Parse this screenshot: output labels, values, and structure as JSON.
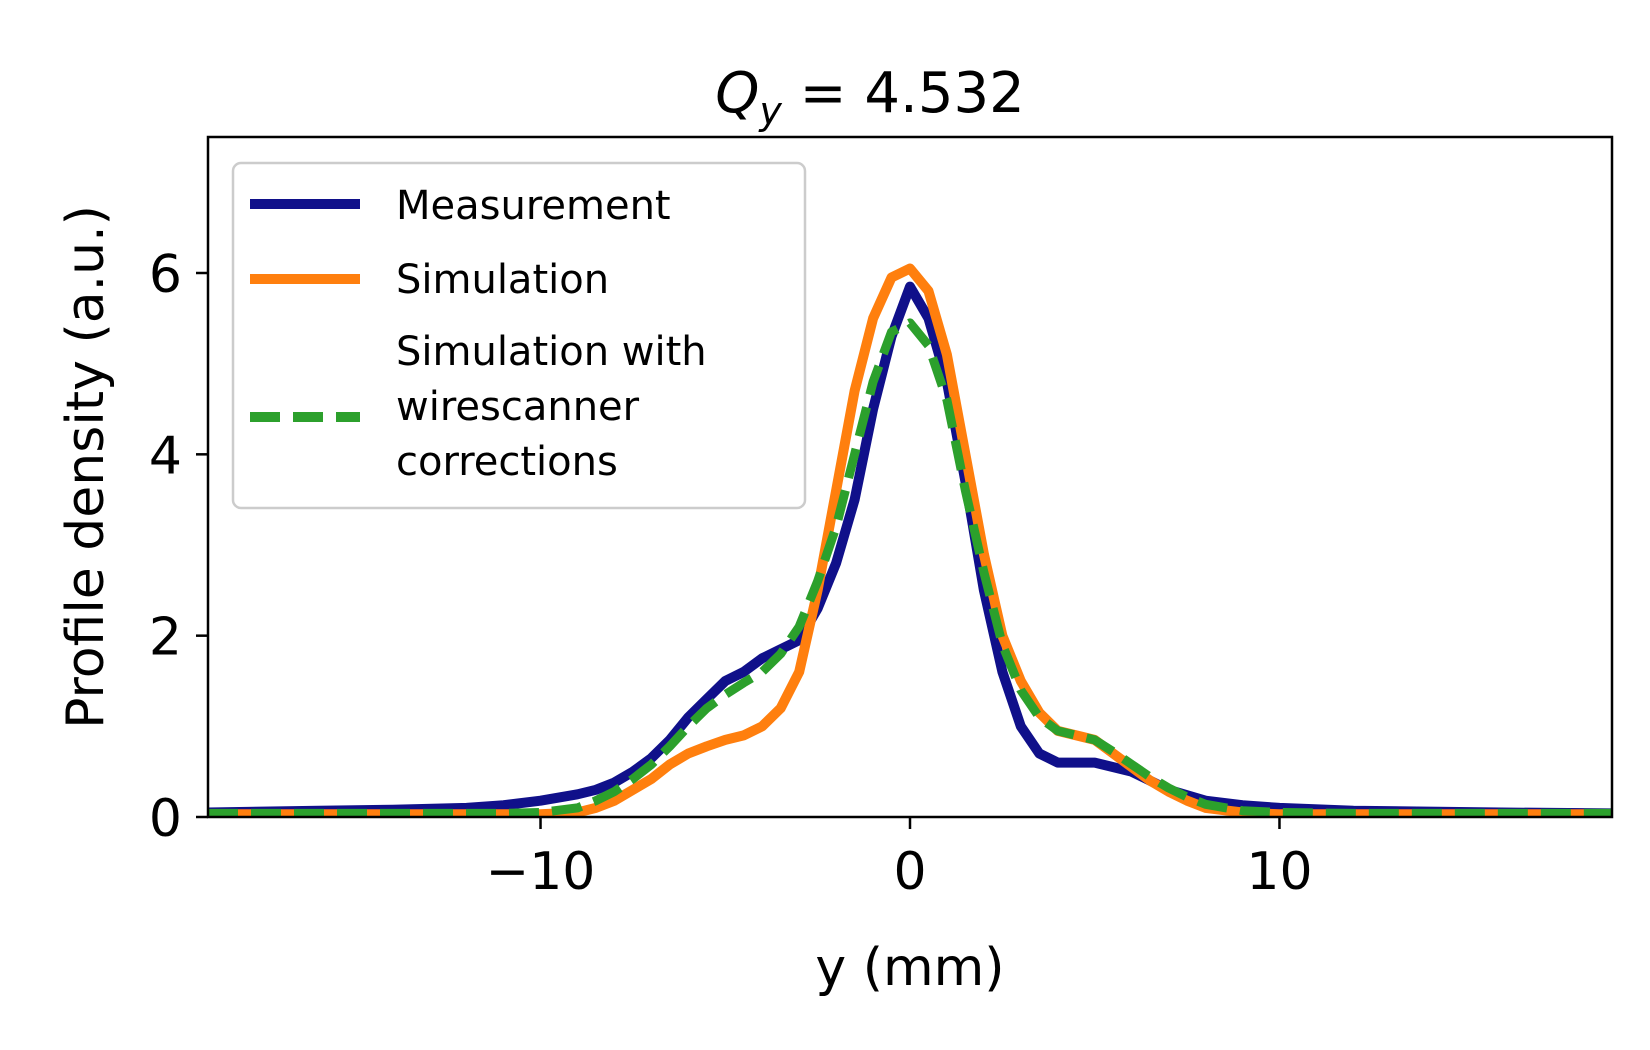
{
  "chart_data": {
    "type": "line",
    "title": "Q_y = 4.532",
    "title_parts": {
      "symbol": "Q",
      "subscript": "y",
      "rest": " = 4.532"
    },
    "xlabel": "y (mm)",
    "ylabel": "Profile density (a.u.)",
    "xlim": [
      -19,
      19
    ],
    "ylim": [
      0,
      7.5
    ],
    "xticks": [
      -10,
      0,
      10
    ],
    "xtick_labels": [
      "−10",
      "0",
      "10"
    ],
    "yticks": [
      0,
      2,
      4,
      6
    ],
    "ytick_labels": [
      "0",
      "2",
      "4",
      "6"
    ],
    "grid": false,
    "legend_position": "top-left",
    "series": [
      {
        "name": "Measurement",
        "color": "#10108a",
        "style": "solid",
        "x": [
          -19,
          -16,
          -14,
          -12,
          -11,
          -10,
          -9,
          -8.5,
          -8,
          -7.5,
          -7,
          -6.5,
          -6,
          -5.5,
          -5,
          -4.5,
          -4,
          -3.5,
          -3,
          -2.5,
          -2,
          -1.5,
          -1,
          -0.5,
          0,
          0.5,
          1,
          1.5,
          2,
          2.5,
          3,
          3.5,
          4,
          4.5,
          5,
          5.5,
          6,
          6.5,
          7,
          8,
          9,
          10,
          12,
          14,
          16,
          19
        ],
        "y": [
          0.05,
          0.07,
          0.08,
          0.1,
          0.13,
          0.18,
          0.25,
          0.3,
          0.38,
          0.5,
          0.65,
          0.85,
          1.1,
          1.3,
          1.5,
          1.6,
          1.75,
          1.85,
          1.95,
          2.3,
          2.8,
          3.5,
          4.5,
          5.3,
          5.85,
          5.5,
          4.8,
          3.7,
          2.5,
          1.6,
          1.0,
          0.7,
          0.6,
          0.6,
          0.6,
          0.55,
          0.5,
          0.4,
          0.3,
          0.18,
          0.13,
          0.1,
          0.07,
          0.06,
          0.05,
          0.04
        ]
      },
      {
        "name": "Simulation",
        "color": "#ff7f0e",
        "style": "solid",
        "x": [
          -19,
          -14,
          -11,
          -10,
          -9,
          -8.5,
          -8,
          -7.5,
          -7,
          -6.5,
          -6,
          -5.5,
          -5,
          -4.5,
          -4,
          -3.5,
          -3,
          -2.5,
          -2,
          -1.5,
          -1,
          -0.5,
          0,
          0.5,
          1,
          1.5,
          2,
          2.5,
          3,
          3.5,
          4,
          4.5,
          5,
          5.5,
          6,
          6.5,
          7,
          7.5,
          8,
          9,
          10,
          12,
          19
        ],
        "y": [
          0.03,
          0.03,
          0.03,
          0.03,
          0.05,
          0.1,
          0.18,
          0.3,
          0.42,
          0.58,
          0.7,
          0.78,
          0.85,
          0.9,
          1.0,
          1.2,
          1.6,
          2.5,
          3.6,
          4.7,
          5.5,
          5.95,
          6.05,
          5.8,
          5.1,
          4.0,
          2.9,
          2.0,
          1.5,
          1.15,
          0.95,
          0.9,
          0.85,
          0.7,
          0.55,
          0.4,
          0.28,
          0.18,
          0.1,
          0.05,
          0.03,
          0.03,
          0.03
        ]
      },
      {
        "name": "Simulation with wirescanner corrections",
        "color": "#2ca02c",
        "style": "dashed",
        "x": [
          -19,
          -14,
          -11,
          -10,
          -9,
          -8.5,
          -8,
          -7.5,
          -7,
          -6.5,
          -6,
          -5.5,
          -5,
          -4.5,
          -4,
          -3.5,
          -3,
          -2.5,
          -2,
          -1.5,
          -1,
          -0.5,
          0,
          0.5,
          1,
          1.5,
          2,
          2.5,
          3,
          3.5,
          4,
          4.5,
          5,
          5.5,
          6,
          6.5,
          7,
          7.5,
          8,
          9,
          10,
          12,
          19
        ],
        "y": [
          0.04,
          0.04,
          0.04,
          0.05,
          0.1,
          0.18,
          0.28,
          0.42,
          0.58,
          0.78,
          1.0,
          1.2,
          1.35,
          1.48,
          1.6,
          1.8,
          2.1,
          2.6,
          3.2,
          4.0,
          4.8,
          5.35,
          5.45,
          5.2,
          4.6,
          3.6,
          2.7,
          1.9,
          1.4,
          1.1,
          0.95,
          0.9,
          0.85,
          0.72,
          0.58,
          0.44,
          0.32,
          0.22,
          0.14,
          0.07,
          0.05,
          0.04,
          0.04
        ]
      }
    ]
  },
  "legend": {
    "items": [
      {
        "lines": [
          "Measurement"
        ]
      },
      {
        "lines": [
          "Simulation"
        ]
      },
      {
        "lines": [
          "Simulation with",
          "wirescanner",
          "corrections"
        ]
      }
    ]
  }
}
